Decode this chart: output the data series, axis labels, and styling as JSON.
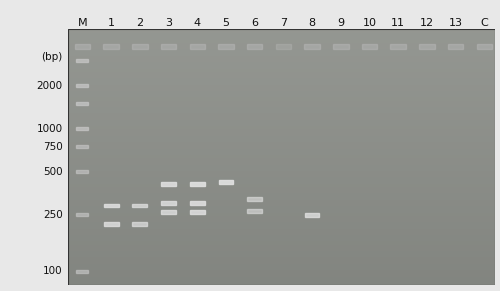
{
  "fig_width": 5.0,
  "fig_height": 2.91,
  "dpi": 100,
  "fig_bg_color": "#e8e8e8",
  "gel_color_top": "#8a9288",
  "gel_color_mid": "#7a8278",
  "gel_color_bottom": "#6a7268",
  "border_color": "#333333",
  "lane_labels": [
    "M",
    "1",
    "2",
    "3",
    "4",
    "5",
    "6",
    "7",
    "8",
    "9",
    "10",
    "11",
    "12",
    "13",
    "C"
  ],
  "bp_labels": [
    "(bp)",
    "2000",
    "1000",
    "750",
    "500",
    "250",
    "100"
  ],
  "bp_positions": [
    3200,
    2000,
    1000,
    750,
    500,
    250,
    100
  ],
  "y_min": 80,
  "y_max": 5000,
  "label_color": "#111111",
  "label_fontsize": 7.5,
  "lane_label_fontsize": 8,
  "smear_color": "#bcbcbc",
  "smear_alpha": 0.55,
  "marker_color": "#c8c8c8",
  "marker_alpha": 0.6,
  "band_color": "#e0e0e0",
  "band_alpha_bright": 0.9,
  "band_alpha_dim": 0.55,
  "configs": {
    "1": {
      "bps": [
        290,
        215
      ],
      "alphas": [
        0.85,
        0.82
      ]
    },
    "2": {
      "bps": [
        290,
        215
      ],
      "alphas": [
        0.75,
        0.72
      ]
    },
    "3": {
      "bps": [
        410,
        300,
        260
      ],
      "alphas": [
        0.88,
        0.82,
        0.8
      ]
    },
    "4": {
      "bps": [
        410,
        300,
        260
      ],
      "alphas": [
        0.92,
        0.88,
        0.85
      ]
    },
    "5": {
      "bps": [
        425
      ],
      "alphas": [
        0.92
      ]
    },
    "6": {
      "bps": [
        320,
        265
      ],
      "alphas": [
        0.62,
        0.6
      ]
    },
    "7": {
      "bps": [],
      "alphas": []
    },
    "8": {
      "bps": [
        248
      ],
      "alphas": [
        0.8
      ]
    },
    "9": {
      "bps": [],
      "alphas": []
    },
    "10": {
      "bps": [],
      "alphas": []
    },
    "11": {
      "bps": [],
      "alphas": []
    },
    "12": {
      "bps": [],
      "alphas": []
    },
    "13": {
      "bps": [],
      "alphas": []
    },
    "C": {
      "bps": [],
      "alphas": []
    }
  },
  "marker_bps": [
    3000,
    2000,
    1500,
    1000,
    750,
    500,
    250,
    100
  ]
}
